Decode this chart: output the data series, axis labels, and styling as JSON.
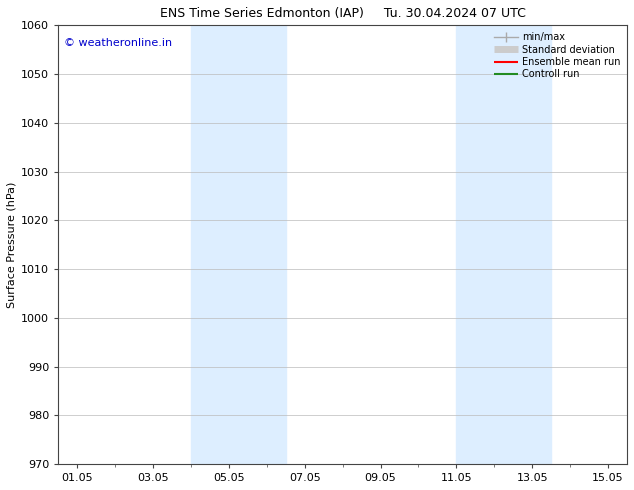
{
  "title_left": "ENS Time Series Edmonton (IAP)",
  "title_right": "Tu. 30.04.2024 07 UTC",
  "ylabel": "Surface Pressure (hPa)",
  "ylim": [
    970,
    1060
  ],
  "yticks": [
    970,
    980,
    990,
    1000,
    1010,
    1020,
    1030,
    1040,
    1050,
    1060
  ],
  "xtick_labels": [
    "01.05",
    "03.05",
    "05.05",
    "07.05",
    "09.05",
    "11.05",
    "13.05",
    "15.05"
  ],
  "xtick_positions": [
    0,
    2,
    4,
    6,
    8,
    10,
    12,
    14
  ],
  "xlim": [
    -0.5,
    14.5
  ],
  "shaded_bands": [
    {
      "x_start": 3,
      "x_end": 5.5,
      "color": "#ddeeff"
    },
    {
      "x_start": 10,
      "x_end": 12.5,
      "color": "#ddeeff"
    }
  ],
  "watermark": "© weatheronline.in",
  "watermark_color": "#0000cc",
  "legend_entries": [
    {
      "label": "min/max",
      "color": "#aaaaaa",
      "lw": 1.0
    },
    {
      "label": "Standard deviation",
      "color": "#cccccc",
      "lw": 5
    },
    {
      "label": "Ensemble mean run",
      "color": "#ff0000",
      "lw": 1.5
    },
    {
      "label": "Controll run",
      "color": "#228B22",
      "lw": 1.5
    }
  ],
  "bg_color": "#ffffff",
  "plot_bg_color": "#ffffff",
  "grid_color": "#bbbbbb",
  "spine_color": "#444444",
  "tick_fontsize": 8,
  "ylabel_fontsize": 8,
  "title_fontsize": 9,
  "watermark_fontsize": 8
}
